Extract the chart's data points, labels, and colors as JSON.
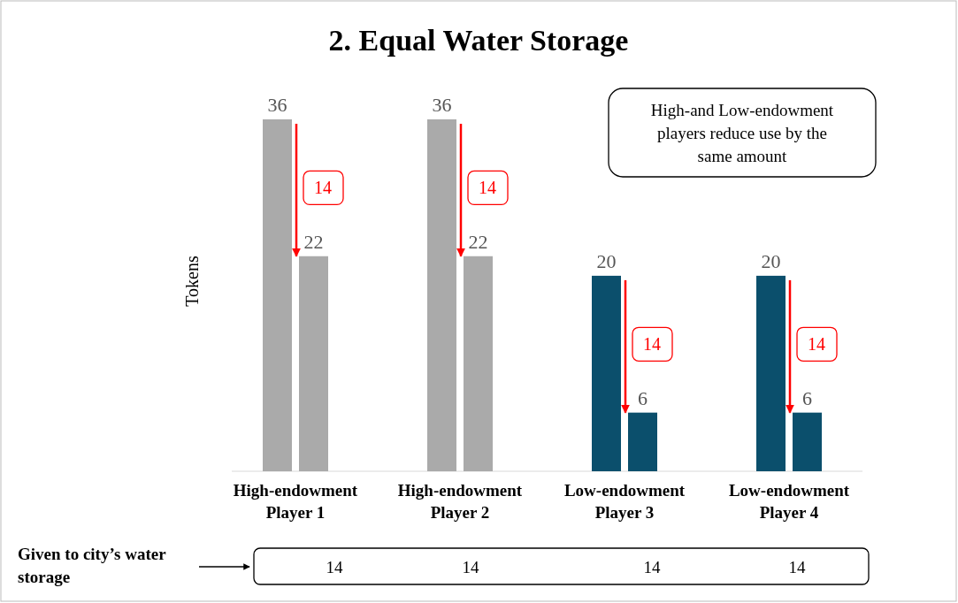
{
  "chart_data": {
    "type": "bar",
    "title": "2. Equal Water Storage",
    "ylabel": "Tokens",
    "categories": [
      "High-endowment\nPlayer 1",
      "High-endowment\nPlayer 2",
      "Low-endowment\nPlayer 3",
      "Low-endowment\nPlayer 4"
    ],
    "series": [
      {
        "values": [
          36,
          36,
          20,
          20
        ],
        "colors": [
          "#aaaaaa",
          "#aaaaaa",
          "#0b4f6c",
          "#0b4f6c"
        ]
      },
      {
        "values": [
          22,
          22,
          6,
          6
        ],
        "colors": [
          "#aaaaaa",
          "#aaaaaa",
          "#0b4f6c",
          "#0b4f6c"
        ]
      }
    ],
    "tick_labels": "x",
    "data_labels": true,
    "annotations": [
      "High-and Low-endowment\nplayers reduce use by the\nsame amount",
      "Given to city’s water\nstorage",
      {
        "text": "14",
        "x": "High-endowment\nPlayer 1",
        "y": 29
      },
      {
        "text": "14",
        "x": "High-endowment\nPlayer 2",
        "y": 29
      },
      {
        "text": "14",
        "x": "Low-endowment\nPlayer 3",
        "y": 13
      },
      {
        "text": "14",
        "x": "Low-endowment\nPlayer 4",
        "y": 13
      },
      "14",
      "14",
      "14",
      "14"
    ]
  }
}
